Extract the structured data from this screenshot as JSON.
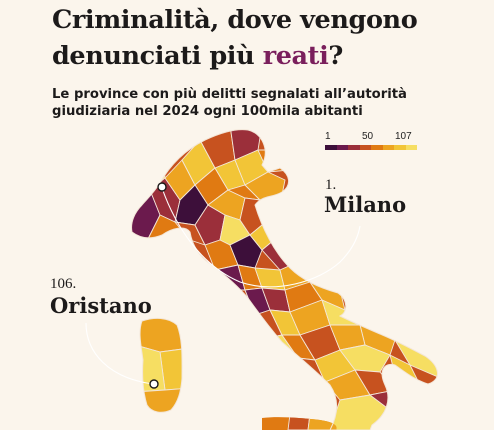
{
  "header": {
    "title_line1": "Criminalità, dove vengono",
    "title_line2_pre": "denunciati più ",
    "title_line2_accent": "reati",
    "title_line2_post": "?",
    "subtitle_line1": "Le province con più delitti segnalati all’autorità",
    "subtitle_line2": "giudiziaria nel 2024 ogni 100mila abitanti"
  },
  "legend": {
    "ticks": [
      "1",
      "50",
      "107"
    ],
    "colors": [
      "#3d0f3a",
      "#6b1a4d",
      "#9b2f3a",
      "#c7521f",
      "#e07a12",
      "#eda421",
      "#f2c537",
      "#f6de62"
    ]
  },
  "callouts": {
    "first": {
      "rank": "1.",
      "city": "Milano"
    },
    "last": {
      "rank": "106.",
      "city": "Oristano"
    }
  },
  "map_palette": {
    "background": "#fbf5ec",
    "border": "#f3e6d8",
    "accent": "#7a1f5c"
  }
}
